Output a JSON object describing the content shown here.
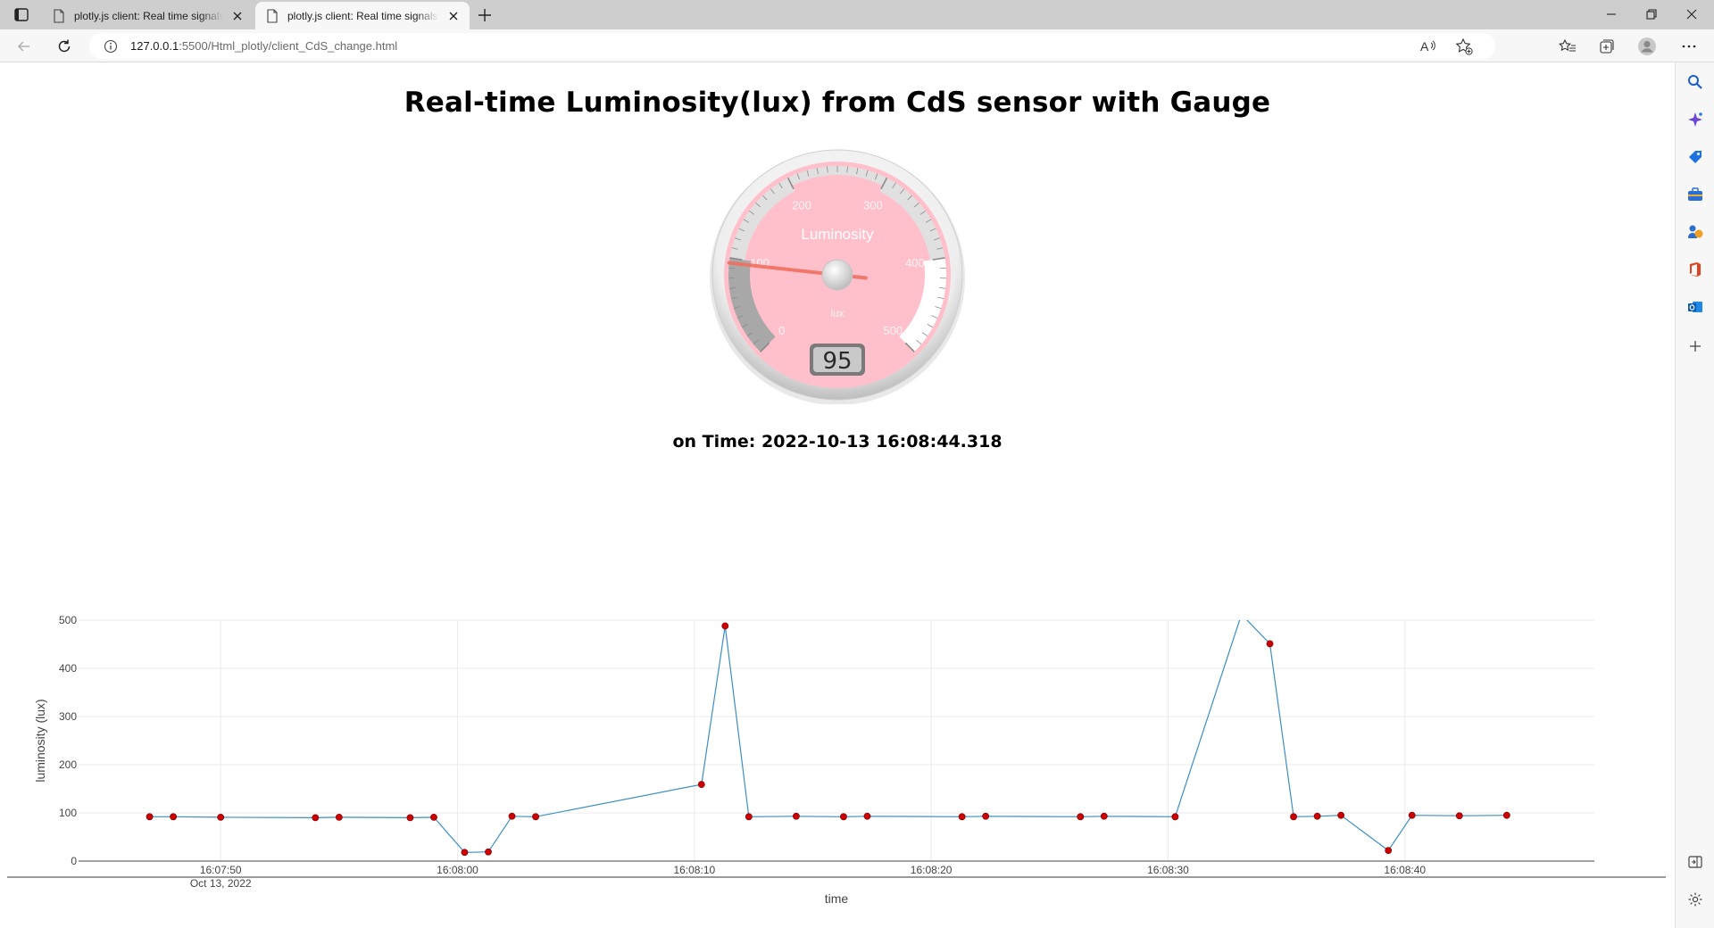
{
  "browser": {
    "tabs": [
      {
        "title": "plotly.js client: Real time signals from CdS sensor",
        "active": false
      },
      {
        "title": "plotly.js client: Real time signals from CdS sensor",
        "active": true
      }
    ],
    "url_host": "127.0.0.1",
    "url_rest": ":5500/Html_plotly/client_CdS_change.html",
    "icons": {
      "tab_actions": "tab-actions-icon",
      "new_tab": "plus-icon",
      "back": "back-arrow-icon",
      "refresh": "refresh-icon",
      "info": "info-icon",
      "read_aloud": "read-aloud-icon",
      "favorite_add": "star-plus-icon",
      "favorites": "favorites-icon",
      "collections": "collections-icon",
      "profile": "profile-icon",
      "more": "more-dots-icon",
      "minimize": "minimize-icon",
      "restore": "restore-icon",
      "close": "close-icon"
    },
    "sidebar": [
      "search-icon",
      "copilot-icon",
      "shopping-tag-icon",
      "tools-icon",
      "games-icon",
      "office-icon",
      "outlook-icon",
      "add-icon",
      "split-screen-icon",
      "settings-icon"
    ]
  },
  "page": {
    "title": "Real-time Luminosity(lux) from CdS sensor with Gauge",
    "time_label": "on Time: 2022-10-13 16:08:44.318"
  },
  "gauge": {
    "title": "Luminosity",
    "units": "lux",
    "value": 95,
    "min": 0,
    "max": 500,
    "major_ticks": [
      "0",
      "100",
      "200",
      "300",
      "400",
      "500"
    ],
    "colors": {
      "plate": "#ffc0cb",
      "needle": "#f07060",
      "highlight_low": "#a8a8a8",
      "highlight_mid": "#e0e0e0",
      "highlight_high": "#ffffff"
    }
  },
  "chart_data": {
    "type": "line",
    "xlabel": "time",
    "ylabel": "luminosity (lux)",
    "ylim": [
      0,
      500
    ],
    "xlim": [
      "16:07:44",
      "16:08:48"
    ],
    "x_ticks": [
      "16:07:50",
      "16:08:00",
      "16:08:10",
      "16:08:20",
      "16:08:30",
      "16:08:40"
    ],
    "x_tick_sub": "Oct 13, 2022",
    "y_ticks": [
      0,
      100,
      200,
      300,
      400,
      500
    ],
    "grid": true,
    "line_color": "#3b8fc4",
    "marker_color": "#cc0000",
    "series": [
      {
        "x": [
          "16:07:47.0",
          "16:07:48.0",
          "16:07:50.0",
          "16:07:54.0",
          "16:07:55.0",
          "16:07:58.0",
          "16:07:59.0",
          "16:08:00.3",
          "16:08:01.3",
          "16:08:02.3",
          "16:08:03.3",
          "16:08:10.3",
          "16:08:11.3",
          "16:08:12.3",
          "16:08:14.3",
          "16:08:16.3",
          "16:08:17.3",
          "16:08:21.3",
          "16:08:22.3",
          "16:08:26.3",
          "16:08:27.3",
          "16:08:30.3",
          "16:08:33.1",
          "16:08:34.3",
          "16:08:35.3",
          "16:08:36.3",
          "16:08:37.3",
          "16:08:39.3",
          "16:08:40.3",
          "16:08:42.3",
          "16:08:44.3"
        ],
        "y": [
          92,
          92,
          91,
          90,
          91,
          90,
          91,
          18,
          19,
          93,
          92,
          159,
          488,
          92,
          93,
          92,
          93,
          92,
          93,
          92,
          93,
          92,
          512,
          451,
          92,
          93,
          95,
          22,
          95,
          94,
          95
        ],
        "markers": [
          true,
          true,
          true,
          true,
          true,
          true,
          true,
          true,
          true,
          true,
          true,
          true,
          true,
          true,
          true,
          true,
          true,
          true,
          true,
          true,
          true,
          true,
          false,
          true,
          true,
          true,
          true,
          true,
          true,
          true,
          true
        ]
      }
    ]
  }
}
